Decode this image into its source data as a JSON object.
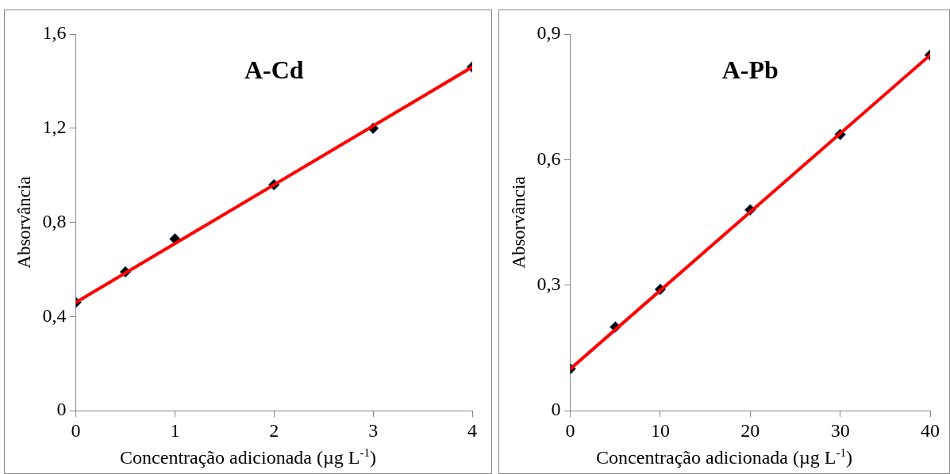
{
  "chart_data": [
    {
      "type": "scatter",
      "title": "A-Cd",
      "xlabel": "Concentração adicionada (µg L$^{-1}$)",
      "ylabel": "Absorvância",
      "xlim": [
        0,
        4
      ],
      "xticks": [
        0,
        1,
        2,
        3,
        4
      ],
      "ylim": [
        0,
        1.6
      ],
      "yticks": [
        0,
        {
          "value": 0.4,
          "label": "0,4"
        },
        {
          "value": 0.8,
          "label": "0,8"
        },
        {
          "value": 1.2,
          "label": "1,2"
        },
        {
          "value": 1.6,
          "label": "1,6"
        }
      ],
      "grid": false,
      "legend": false,
      "series": [
        {
          "type": "scatter",
          "color": "#000000",
          "marker": "diamond",
          "x": [
            0,
            0.5,
            1,
            2,
            3,
            4
          ],
          "values": [
            0.46,
            0.59,
            0.73,
            0.96,
            1.2,
            1.46
          ]
        },
        {
          "type": "line",
          "color": "#ff0000",
          "marker": "none",
          "line_style": "solid",
          "x": [
            0,
            4
          ],
          "values": [
            0.46,
            1.46
          ]
        }
      ]
    },
    {
      "type": "scatter",
      "title": "A-Pb",
      "xlabel": "Concentração adicionada (µg L$^{-1}$)",
      "ylabel": "Absorvância",
      "xlim": [
        0,
        40
      ],
      "xticks": [
        0,
        10,
        20,
        30,
        40
      ],
      "ylim": [
        0,
        0.9
      ],
      "yticks": [
        0,
        {
          "value": 0.3,
          "label": "0,3"
        },
        {
          "value": 0.6,
          "label": "0,6"
        },
        {
          "value": 0.9,
          "label": "0,9"
        }
      ],
      "grid": false,
      "legend": false,
      "series": [
        {
          "type": "scatter",
          "color": "#000000",
          "marker": "diamond",
          "x": [
            0,
            5,
            10,
            20,
            30,
            40
          ],
          "values": [
            0.1,
            0.2,
            0.29,
            0.48,
            0.66,
            0.85
          ]
        },
        {
          "type": "line",
          "color": "#ff0000",
          "marker": "none",
          "line_style": "solid",
          "x": [
            0,
            40
          ],
          "values": [
            0.1,
            0.85
          ]
        }
      ]
    }
  ]
}
